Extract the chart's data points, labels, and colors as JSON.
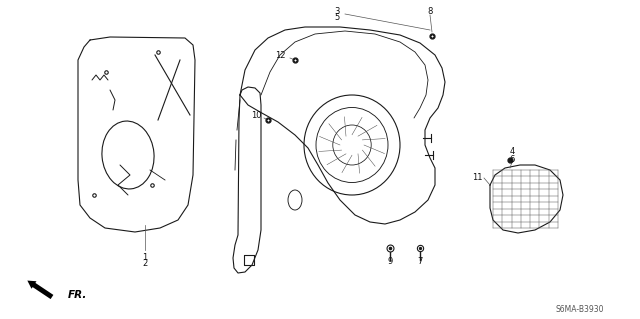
{
  "bg_color": "#ffffff",
  "fig_width": 6.4,
  "fig_height": 3.19,
  "dpi": 100,
  "diagram_code_text": "S6MA-B3930",
  "line_color": "#1a1a1a",
  "text_color": "#111111",
  "label_fontsize": 6.0,
  "code_fontsize": 5.5
}
